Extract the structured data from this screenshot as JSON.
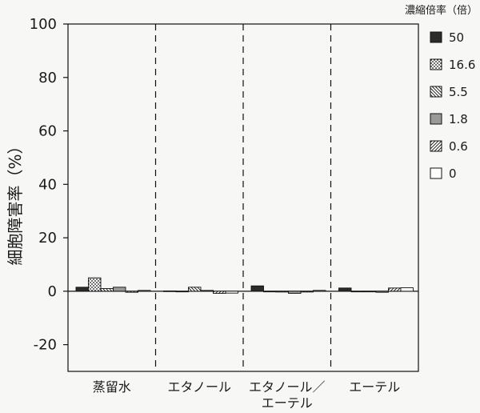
{
  "chart_data": {
    "type": "bar",
    "ylabel": "細胞障害率（%）",
    "ylim": [
      -30,
      100
    ],
    "yticks": [
      100,
      80,
      60,
      40,
      20,
      0,
      -20
    ],
    "categories": [
      "蒸留水",
      "エタノール",
      "エタノール／\nエーテル",
      "エーテル"
    ],
    "legend_title": "濃縮倍率（倍）",
    "legend_position": "right",
    "series": [
      {
        "name": "50",
        "pattern": "solid-black",
        "values": [
          1.5,
          0.1,
          2.0,
          1.2
        ]
      },
      {
        "name": "16.6",
        "pattern": "dots",
        "values": [
          5.0,
          0.0,
          0.0,
          0.0
        ]
      },
      {
        "name": "5.5",
        "pattern": "back-hatch",
        "values": [
          1.0,
          1.5,
          -0.3,
          0.0
        ]
      },
      {
        "name": "1.8",
        "pattern": "solid-gray",
        "values": [
          1.5,
          0.3,
          -0.8,
          -0.4
        ]
      },
      {
        "name": "0.6",
        "pattern": "fwd-hatch",
        "values": [
          -0.4,
          -0.8,
          -0.3,
          1.2
        ]
      },
      {
        "name": "0",
        "pattern": "white",
        "values": [
          0.3,
          -0.7,
          0.3,
          1.3
        ]
      }
    ],
    "group_separators": "dashed",
    "grid": false
  }
}
